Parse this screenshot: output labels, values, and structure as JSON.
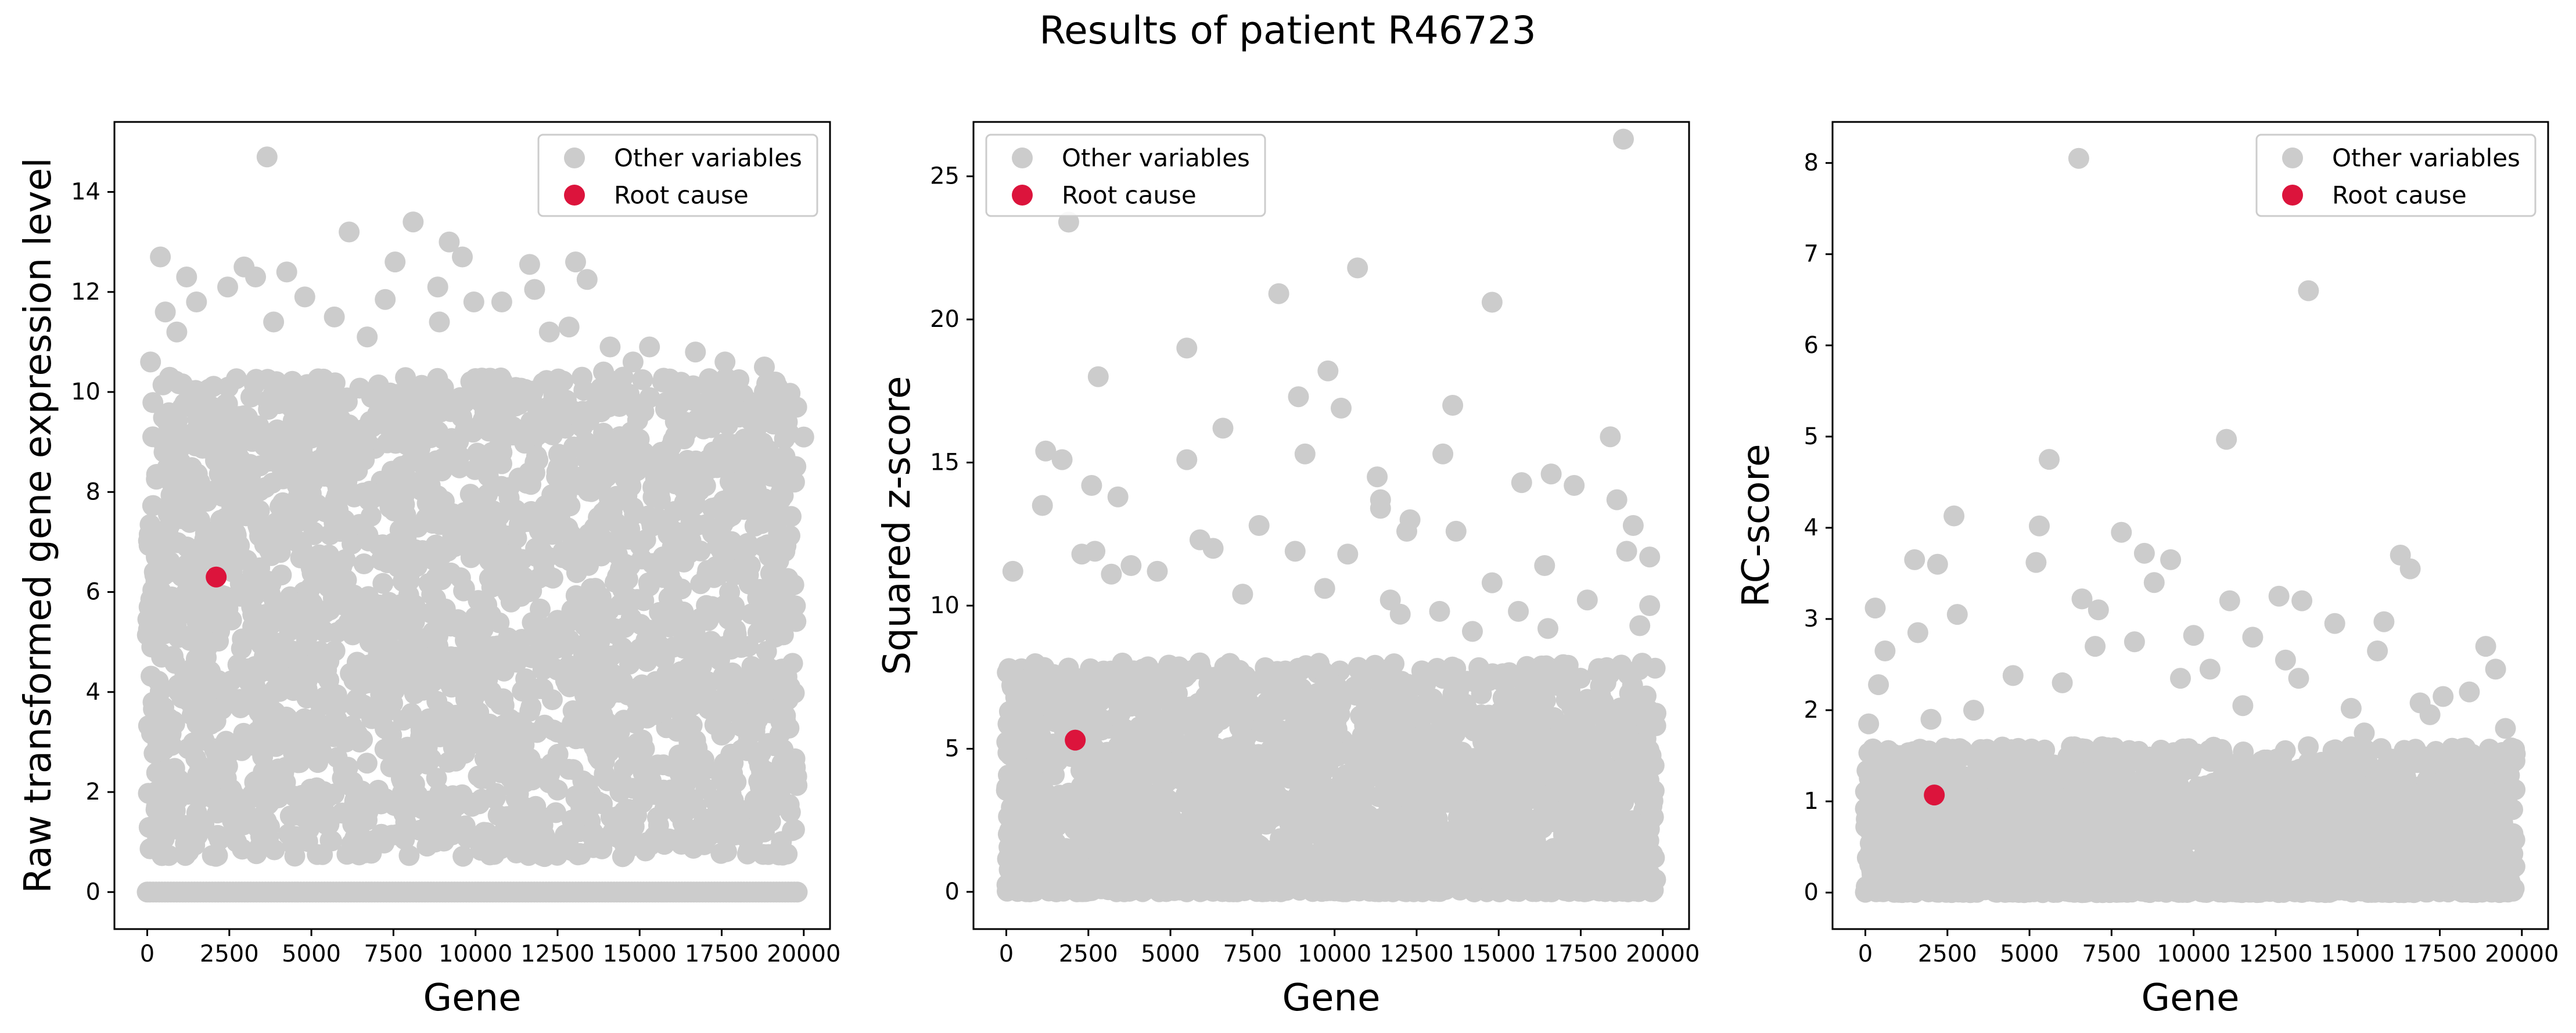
{
  "figure": {
    "title": "Results of patient R46723"
  },
  "colors": {
    "other": "#cccccc",
    "root": "#dc143c",
    "frame": "#000000",
    "legend_edge": "#cccccc"
  },
  "chart_data": [
    {
      "type": "scatter",
      "xlabel": "Gene",
      "ylabel": "Raw transformed gene expression level",
      "xlim": [
        -1000,
        20800
      ],
      "ylim": [
        -0.74,
        15.4
      ],
      "xticks": [
        0,
        2500,
        5000,
        7500,
        10000,
        12500,
        15000,
        17500,
        20000
      ],
      "yticks": [
        0,
        2,
        4,
        6,
        8,
        10,
        12,
        14
      ],
      "legend": {
        "position": "top-right",
        "entries": [
          "Other variables",
          "Root cause"
        ]
      },
      "baseline_y": 0,
      "bulk_band": [
        0.7,
        10.3
      ],
      "root_cause": {
        "x": 2100,
        "y": 6.3
      },
      "other_points": [
        [
          3650,
          14.7
        ],
        [
          8100,
          13.4
        ],
        [
          6150,
          13.2
        ],
        [
          9200,
          13.0
        ],
        [
          9600,
          12.7
        ],
        [
          400,
          12.7
        ],
        [
          2950,
          12.5
        ],
        [
          11650,
          12.55
        ],
        [
          13050,
          12.6
        ],
        [
          7550,
          12.6
        ],
        [
          4250,
          12.4
        ],
        [
          3300,
          12.3
        ],
        [
          1200,
          12.3
        ],
        [
          13400,
          12.25
        ],
        [
          2450,
          12.1
        ],
        [
          11800,
          12.05
        ],
        [
          8850,
          12.1
        ],
        [
          4800,
          11.9
        ],
        [
          7250,
          11.85
        ],
        [
          10800,
          11.8
        ],
        [
          9950,
          11.8
        ],
        [
          1500,
          11.8
        ],
        [
          550,
          11.6
        ],
        [
          5700,
          11.5
        ],
        [
          3850,
          11.4
        ],
        [
          12850,
          11.3
        ],
        [
          12250,
          11.2
        ],
        [
          900,
          11.2
        ],
        [
          8900,
          11.4
        ],
        [
          6700,
          11.1
        ],
        [
          14100,
          10.9
        ],
        [
          15300,
          10.9
        ],
        [
          16700,
          10.8
        ],
        [
          18800,
          10.5
        ],
        [
          14800,
          10.6
        ],
        [
          17600,
          10.6
        ],
        [
          15700,
          10.2
        ],
        [
          19200,
          10.1
        ],
        [
          16050,
          10.05
        ],
        [
          17200,
          9.8
        ],
        [
          19500,
          9.4
        ],
        [
          18400,
          9.5
        ],
        [
          20000,
          9.1
        ],
        [
          13900,
          10.4
        ],
        [
          100,
          10.6
        ]
      ]
    },
    {
      "type": "scatter",
      "xlabel": "Gene",
      "ylabel": "Squared z-score",
      "xlim": [
        -1000,
        20800
      ],
      "ylim": [
        -1.3,
        26.9
      ],
      "xticks": [
        0,
        2500,
        5000,
        7500,
        10000,
        12500,
        15000,
        17500,
        20000
      ],
      "yticks": [
        0,
        5,
        10,
        15,
        20,
        25
      ],
      "legend": {
        "position": "top-left",
        "entries": [
          "Other variables",
          "Root cause"
        ]
      },
      "bulk_band": [
        0,
        8
      ],
      "root_cause": {
        "x": 2100,
        "y": 5.3
      },
      "other_points": [
        [
          18800,
          26.3
        ],
        [
          1900,
          23.4
        ],
        [
          10700,
          21.8
        ],
        [
          8300,
          20.9
        ],
        [
          14800,
          20.6
        ],
        [
          5500,
          19.0
        ],
        [
          9800,
          18.2
        ],
        [
          2800,
          18.0
        ],
        [
          8900,
          17.3
        ],
        [
          13600,
          17.0
        ],
        [
          10200,
          16.9
        ],
        [
          6600,
          16.2
        ],
        [
          18400,
          15.9
        ],
        [
          1200,
          15.4
        ],
        [
          9100,
          15.3
        ],
        [
          13300,
          15.3
        ],
        [
          1700,
          15.1
        ],
        [
          5500,
          15.1
        ],
        [
          11300,
          14.5
        ],
        [
          16600,
          14.6
        ],
        [
          15700,
          14.3
        ],
        [
          17300,
          14.2
        ],
        [
          2600,
          14.2
        ],
        [
          3400,
          13.8
        ],
        [
          11400,
          13.7
        ],
        [
          18600,
          13.7
        ],
        [
          1100,
          13.5
        ],
        [
          11400,
          13.4
        ],
        [
          7700,
          12.8
        ],
        [
          12300,
          13.0
        ],
        [
          19100,
          12.8
        ],
        [
          12200,
          12.6
        ],
        [
          13700,
          12.6
        ],
        [
          5900,
          12.3
        ],
        [
          6300,
          12.0
        ],
        [
          8800,
          11.9
        ],
        [
          2300,
          11.8
        ],
        [
          2700,
          11.9
        ],
        [
          10400,
          11.8
        ],
        [
          18900,
          11.9
        ],
        [
          19600,
          11.7
        ],
        [
          16400,
          11.4
        ],
        [
          14800,
          10.8
        ],
        [
          3800,
          11.4
        ],
        [
          4600,
          11.2
        ],
        [
          200,
          11.2
        ],
        [
          3200,
          11.1
        ],
        [
          9700,
          10.6
        ],
        [
          7200,
          10.4
        ],
        [
          11700,
          10.2
        ],
        [
          17700,
          10.2
        ],
        [
          19600,
          10.0
        ],
        [
          15600,
          9.8
        ],
        [
          12000,
          9.7
        ],
        [
          16500,
          9.2
        ],
        [
          14200,
          9.1
        ],
        [
          13200,
          9.8
        ],
        [
          19300,
          9.3
        ]
      ]
    },
    {
      "type": "scatter",
      "xlabel": "Gene",
      "ylabel": "RC-score",
      "xlim": [
        -1000,
        20800
      ],
      "ylim": [
        -0.4,
        8.45
      ],
      "xticks": [
        0,
        2500,
        5000,
        7500,
        10000,
        12500,
        15000,
        17500,
        20000
      ],
      "yticks": [
        0,
        1,
        2,
        3,
        4,
        5,
        6,
        7,
        8
      ],
      "legend": {
        "position": "top-right",
        "entries": [
          "Other variables",
          "Root cause"
        ]
      },
      "bulk_band": [
        0,
        1.6
      ],
      "root_cause": {
        "x": 2100,
        "y": 1.07
      },
      "other_points": [
        [
          6500,
          8.05
        ],
        [
          13500,
          6.6
        ],
        [
          11000,
          4.97
        ],
        [
          5600,
          4.75
        ],
        [
          2700,
          4.13
        ],
        [
          5300,
          4.02
        ],
        [
          7800,
          3.95
        ],
        [
          8500,
          3.72
        ],
        [
          16300,
          3.7
        ],
        [
          9300,
          3.65
        ],
        [
          1500,
          3.65
        ],
        [
          16600,
          3.55
        ],
        [
          2200,
          3.6
        ],
        [
          5200,
          3.62
        ],
        [
          8800,
          3.4
        ],
        [
          12600,
          3.25
        ],
        [
          13300,
          3.2
        ],
        [
          11100,
          3.2
        ],
        [
          6600,
          3.22
        ],
        [
          7100,
          3.1
        ],
        [
          300,
          3.12
        ],
        [
          2800,
          3.05
        ],
        [
          14300,
          2.95
        ],
        [
          15800,
          2.97
        ],
        [
          1600,
          2.85
        ],
        [
          10000,
          2.82
        ],
        [
          7000,
          2.7
        ],
        [
          18900,
          2.7
        ],
        [
          15600,
          2.65
        ],
        [
          8200,
          2.75
        ],
        [
          600,
          2.65
        ],
        [
          11800,
          2.8
        ],
        [
          12800,
          2.55
        ],
        [
          10500,
          2.45
        ],
        [
          19200,
          2.45
        ],
        [
          4500,
          2.38
        ],
        [
          9600,
          2.35
        ],
        [
          13200,
          2.35
        ],
        [
          400,
          2.28
        ],
        [
          6000,
          2.3
        ],
        [
          18400,
          2.2
        ],
        [
          17600,
          2.15
        ],
        [
          16900,
          2.08
        ],
        [
          14800,
          2.02
        ],
        [
          3300,
          2.0
        ],
        [
          11500,
          2.05
        ],
        [
          19500,
          1.8
        ],
        [
          19800,
          1.52
        ],
        [
          17200,
          1.95
        ],
        [
          100,
          1.85
        ],
        [
          2000,
          1.9
        ],
        [
          15200,
          1.75
        ]
      ]
    }
  ]
}
